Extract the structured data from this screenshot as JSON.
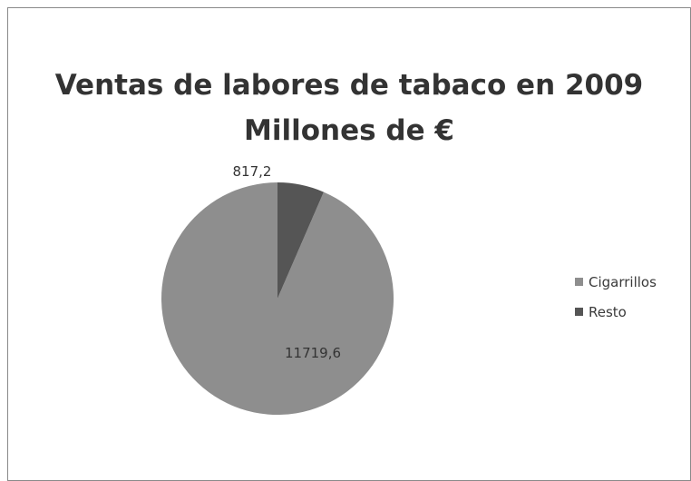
{
  "chart_data": {
    "type": "pie",
    "title": [
      "Ventas de labores de tabaco en 2009",
      "Millones de €"
    ],
    "categories": [
      "Cigarrillos",
      "Resto"
    ],
    "values": [
      11719.6,
      817.2
    ],
    "data_labels": [
      "11719,6",
      "817,2"
    ],
    "colors": [
      "#8e8e8e",
      "#555555"
    ],
    "legend_position": "right",
    "start_angle_deg": 0,
    "direction": "counterclockwise"
  }
}
